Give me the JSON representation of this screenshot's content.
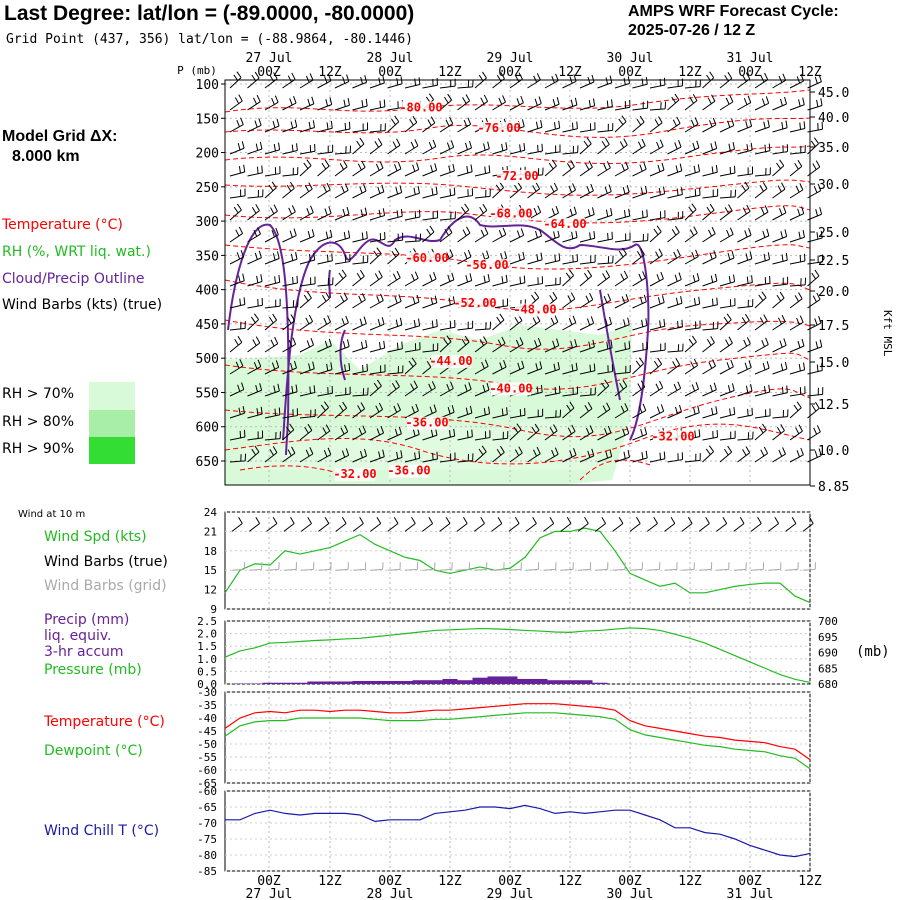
{
  "header": {
    "title": "Last Degree:  lat/lon = (-89.0000, -80.0000)",
    "subtitle": "Grid Point (437, 356) lat/lon = (-88.9864, -80.1446)",
    "cycle_label": "AMPS WRF Forecast Cycle:",
    "cycle_value": "2025-07-26 / 12  Z"
  },
  "model_grid": {
    "label": "Model Grid ΔX:",
    "value": "8.000 km"
  },
  "colors": {
    "temperature": "#ff0000",
    "rh": "#22bb22",
    "cloud": "#662299",
    "wind": "#000000",
    "wind_grid": "#aaaaaa",
    "chill": "#1a1aaa",
    "rh70": "#d8fad8",
    "rh80": "#a8eea8",
    "rh90": "#33dd33"
  },
  "time_axis": {
    "top_dates": [
      "27 Jul",
      "28 Jul",
      "29 Jul",
      "30 Jul",
      "31 Jul"
    ],
    "hours": [
      "00Z",
      "12Z",
      "00Z",
      "12Z",
      "00Z",
      "12Z",
      "00Z",
      "12Z",
      "00Z",
      "12Z"
    ],
    "bottom_hours": [
      "00Z",
      "12Z",
      "00Z",
      "12Z",
      "00Z",
      "12Z",
      "00Z",
      "12Z",
      "00Z",
      "12Z"
    ],
    "bottom_dates": [
      "27 Jul",
      "28 Jul",
      "29 Jul",
      "30 Jul",
      "31 Jul"
    ]
  },
  "chart_data": [
    {
      "type": "line",
      "panel": "cross-section",
      "ylabel": "P (mb)",
      "y2label": "Kft MSL",
      "pressure_ticks": [
        100,
        150,
        200,
        250,
        300,
        350,
        400,
        450,
        500,
        550,
        600,
        650
      ],
      "kft_ticks": [
        "45.0",
        "40.0",
        "35.0",
        "30.0",
        "25.0",
        "22.5",
        "20.0",
        "17.5",
        "15.0",
        "12.5",
        "10.0",
        "8.85"
      ],
      "legend": {
        "temperature": "Temperature (°C)",
        "rh": "RH (%, WRT liq. wat.)",
        "cloud": "Cloud/Precip Outline",
        "wind": "Wind Barbs (kts) (true)"
      },
      "rh_legend": [
        "RH > 70%",
        "RH > 80%",
        "RH > 90%"
      ],
      "temp_labels": [
        "-80.00",
        "-76.00",
        "-72.00",
        "-68.00",
        "-64.00",
        "-60.00",
        "-56.00",
        "-52.00",
        "-48.00",
        "-44.00",
        "-40.00",
        "-36.00",
        "-36.00",
        "-32.00",
        "-32.00"
      ],
      "temp_label_points": [
        {
          "text": "-80.00",
          "t": 1.25,
          "p": 140
        },
        {
          "text": "-76.00",
          "t": 1.9,
          "p": 170
        },
        {
          "text": "-72.00",
          "t": 2.05,
          "p": 240
        },
        {
          "text": "-68.00",
          "t": 2.0,
          "p": 295
        },
        {
          "text": "-64.00",
          "t": 2.45,
          "p": 310
        },
        {
          "text": "-60.00",
          "t": 1.3,
          "p": 360
        },
        {
          "text": "-56.00",
          "t": 1.8,
          "p": 370
        },
        {
          "text": "-52.00",
          "t": 1.7,
          "p": 425
        },
        {
          "text": "-48.00",
          "t": 2.2,
          "p": 435
        },
        {
          "text": "-44.00",
          "t": 1.5,
          "p": 510
        },
        {
          "text": "-40.00",
          "t": 2.0,
          "p": 550
        },
        {
          "text": "-36.00",
          "t": 1.3,
          "p": 600
        },
        {
          "text": "-36.00",
          "t": 1.15,
          "p": 670
        },
        {
          "text": "-32.00",
          "t": 3.35,
          "p": 620
        },
        {
          "text": "-32.00",
          "t": 0.7,
          "p": 675
        }
      ]
    },
    {
      "type": "line",
      "panel": "wind-10m",
      "title": "Wind at 10 m",
      "legend": [
        "Wind Spd (kts)",
        "Wind Barbs (true)",
        "Wind Barbs (grid)"
      ],
      "ylim": [
        9,
        24
      ],
      "yticks": [
        9,
        12,
        15,
        18,
        21,
        24
      ],
      "series": [
        {
          "name": "Wind Spd (kts)",
          "color": "#22bb22",
          "values": [
            11.5,
            15,
            16,
            15.8,
            18,
            17.5,
            18,
            18.5,
            19.5,
            20.5,
            19,
            18,
            17,
            16.5,
            15,
            14.5,
            15,
            15.5,
            15,
            15.3,
            17,
            20,
            21,
            21,
            21.5,
            21,
            18,
            14.5,
            13.5,
            12.5,
            13,
            11.5,
            11.5,
            12,
            12.5,
            12.8,
            13,
            13,
            11,
            10
          ]
        }
      ]
    },
    {
      "type": "line",
      "panel": "precip-pressure",
      "legend": [
        "Precip (mm)",
        "liq. equiv.",
        "3-hr accum",
        "Pressure (mb)"
      ],
      "ylim": [
        0,
        2.5
      ],
      "yticks": [
        "0.0",
        "0.5",
        "1.0",
        "1.5",
        "2.0",
        "2.5"
      ],
      "y2lim": [
        680,
        700
      ],
      "y2ticks": [
        680,
        685,
        690,
        695,
        700
      ],
      "y2label": "(mb)",
      "series": [
        {
          "name": "Pressure (mb)",
          "color": "#22bb22",
          "values": [
            688.5,
            690.5,
            691.5,
            693,
            693.2,
            693.5,
            693.8,
            694,
            694.3,
            694.5,
            695,
            695.5,
            696,
            696.5,
            697,
            697.2,
            697.4,
            697.6,
            697.5,
            697.3,
            697,
            696.8,
            696.5,
            696.4,
            696.8,
            697,
            697.4,
            697.8,
            697.6,
            697,
            695.8,
            694.5,
            693,
            691,
            689,
            687,
            685,
            683,
            681.5,
            680.5
          ]
        },
        {
          "name": "Precip (mm)",
          "color": "#662299",
          "values": [
            0.0,
            0.02,
            0.02,
            0.05,
            0.05,
            0.05,
            0.1,
            0.1,
            0.1,
            0.12,
            0.12,
            0.12,
            0.12,
            0.15,
            0.15,
            0.2,
            0.15,
            0.25,
            0.3,
            0.3,
            0.2,
            0.2,
            0.15,
            0.15,
            0.15,
            0.05,
            0.0,
            0.0,
            0,
            0,
            0,
            0,
            0,
            0,
            0,
            0,
            0,
            0,
            0,
            0
          ]
        }
      ]
    },
    {
      "type": "line",
      "panel": "temperature",
      "legend": [
        "Temperature (°C)",
        "Dewpoint (°C)"
      ],
      "ylim": [
        -65,
        -30
      ],
      "yticks": [
        -30,
        -35,
        -40,
        -45,
        -50,
        -55,
        -60,
        -65
      ],
      "series": [
        {
          "name": "Temperature (°C)",
          "color": "#ff0000",
          "values": [
            -44,
            -40,
            -38,
            -37.5,
            -38,
            -37,
            -37,
            -37.5,
            -37,
            -37,
            -37.5,
            -38,
            -38,
            -37.5,
            -37,
            -37,
            -36.5,
            -36,
            -35.5,
            -35,
            -34.5,
            -34.5,
            -34.5,
            -35,
            -35.5,
            -36,
            -37,
            -41,
            -43,
            -44,
            -45,
            -46,
            -47,
            -47.5,
            -48.5,
            -49,
            -49.5,
            -51,
            -52,
            -56
          ]
        },
        {
          "name": "Dewpoint (°C)",
          "color": "#22bb22",
          "values": [
            -47,
            -43,
            -41.5,
            -41,
            -41,
            -40,
            -40,
            -40,
            -40,
            -40,
            -40.5,
            -41,
            -41,
            -41,
            -40.5,
            -40.5,
            -40,
            -39.5,
            -39,
            -38.5,
            -38,
            -38,
            -38,
            -38.5,
            -39,
            -39.5,
            -40.5,
            -44.5,
            -46.5,
            -47.5,
            -48.5,
            -49.5,
            -50.5,
            -51,
            -52,
            -52.5,
            -53,
            -54.5,
            -55.5,
            -59.5
          ]
        }
      ]
    },
    {
      "type": "line",
      "panel": "wind-chill",
      "legend": [
        "Wind Chill T (°C)"
      ],
      "ylim": [
        -85,
        -60
      ],
      "yticks": [
        -60,
        -65,
        -70,
        -75,
        -80,
        -85
      ],
      "series": [
        {
          "name": "Wind Chill T (°C)",
          "color": "#1a1aaa",
          "values": [
            -69,
            -69,
            -67,
            -66,
            -67,
            -67.5,
            -67,
            -67,
            -67,
            -67.5,
            -69.5,
            -69,
            -69,
            -69,
            -67,
            -66.5,
            -66,
            -65,
            -65,
            -65.5,
            -64.5,
            -65.5,
            -67,
            -66.5,
            -67,
            -66.5,
            -66,
            -66,
            -67.5,
            -69,
            -71.5,
            -71.5,
            -73,
            -73.5,
            -75,
            -77,
            -78.5,
            -80,
            -80.5,
            -79.5
          ]
        }
      ]
    }
  ]
}
